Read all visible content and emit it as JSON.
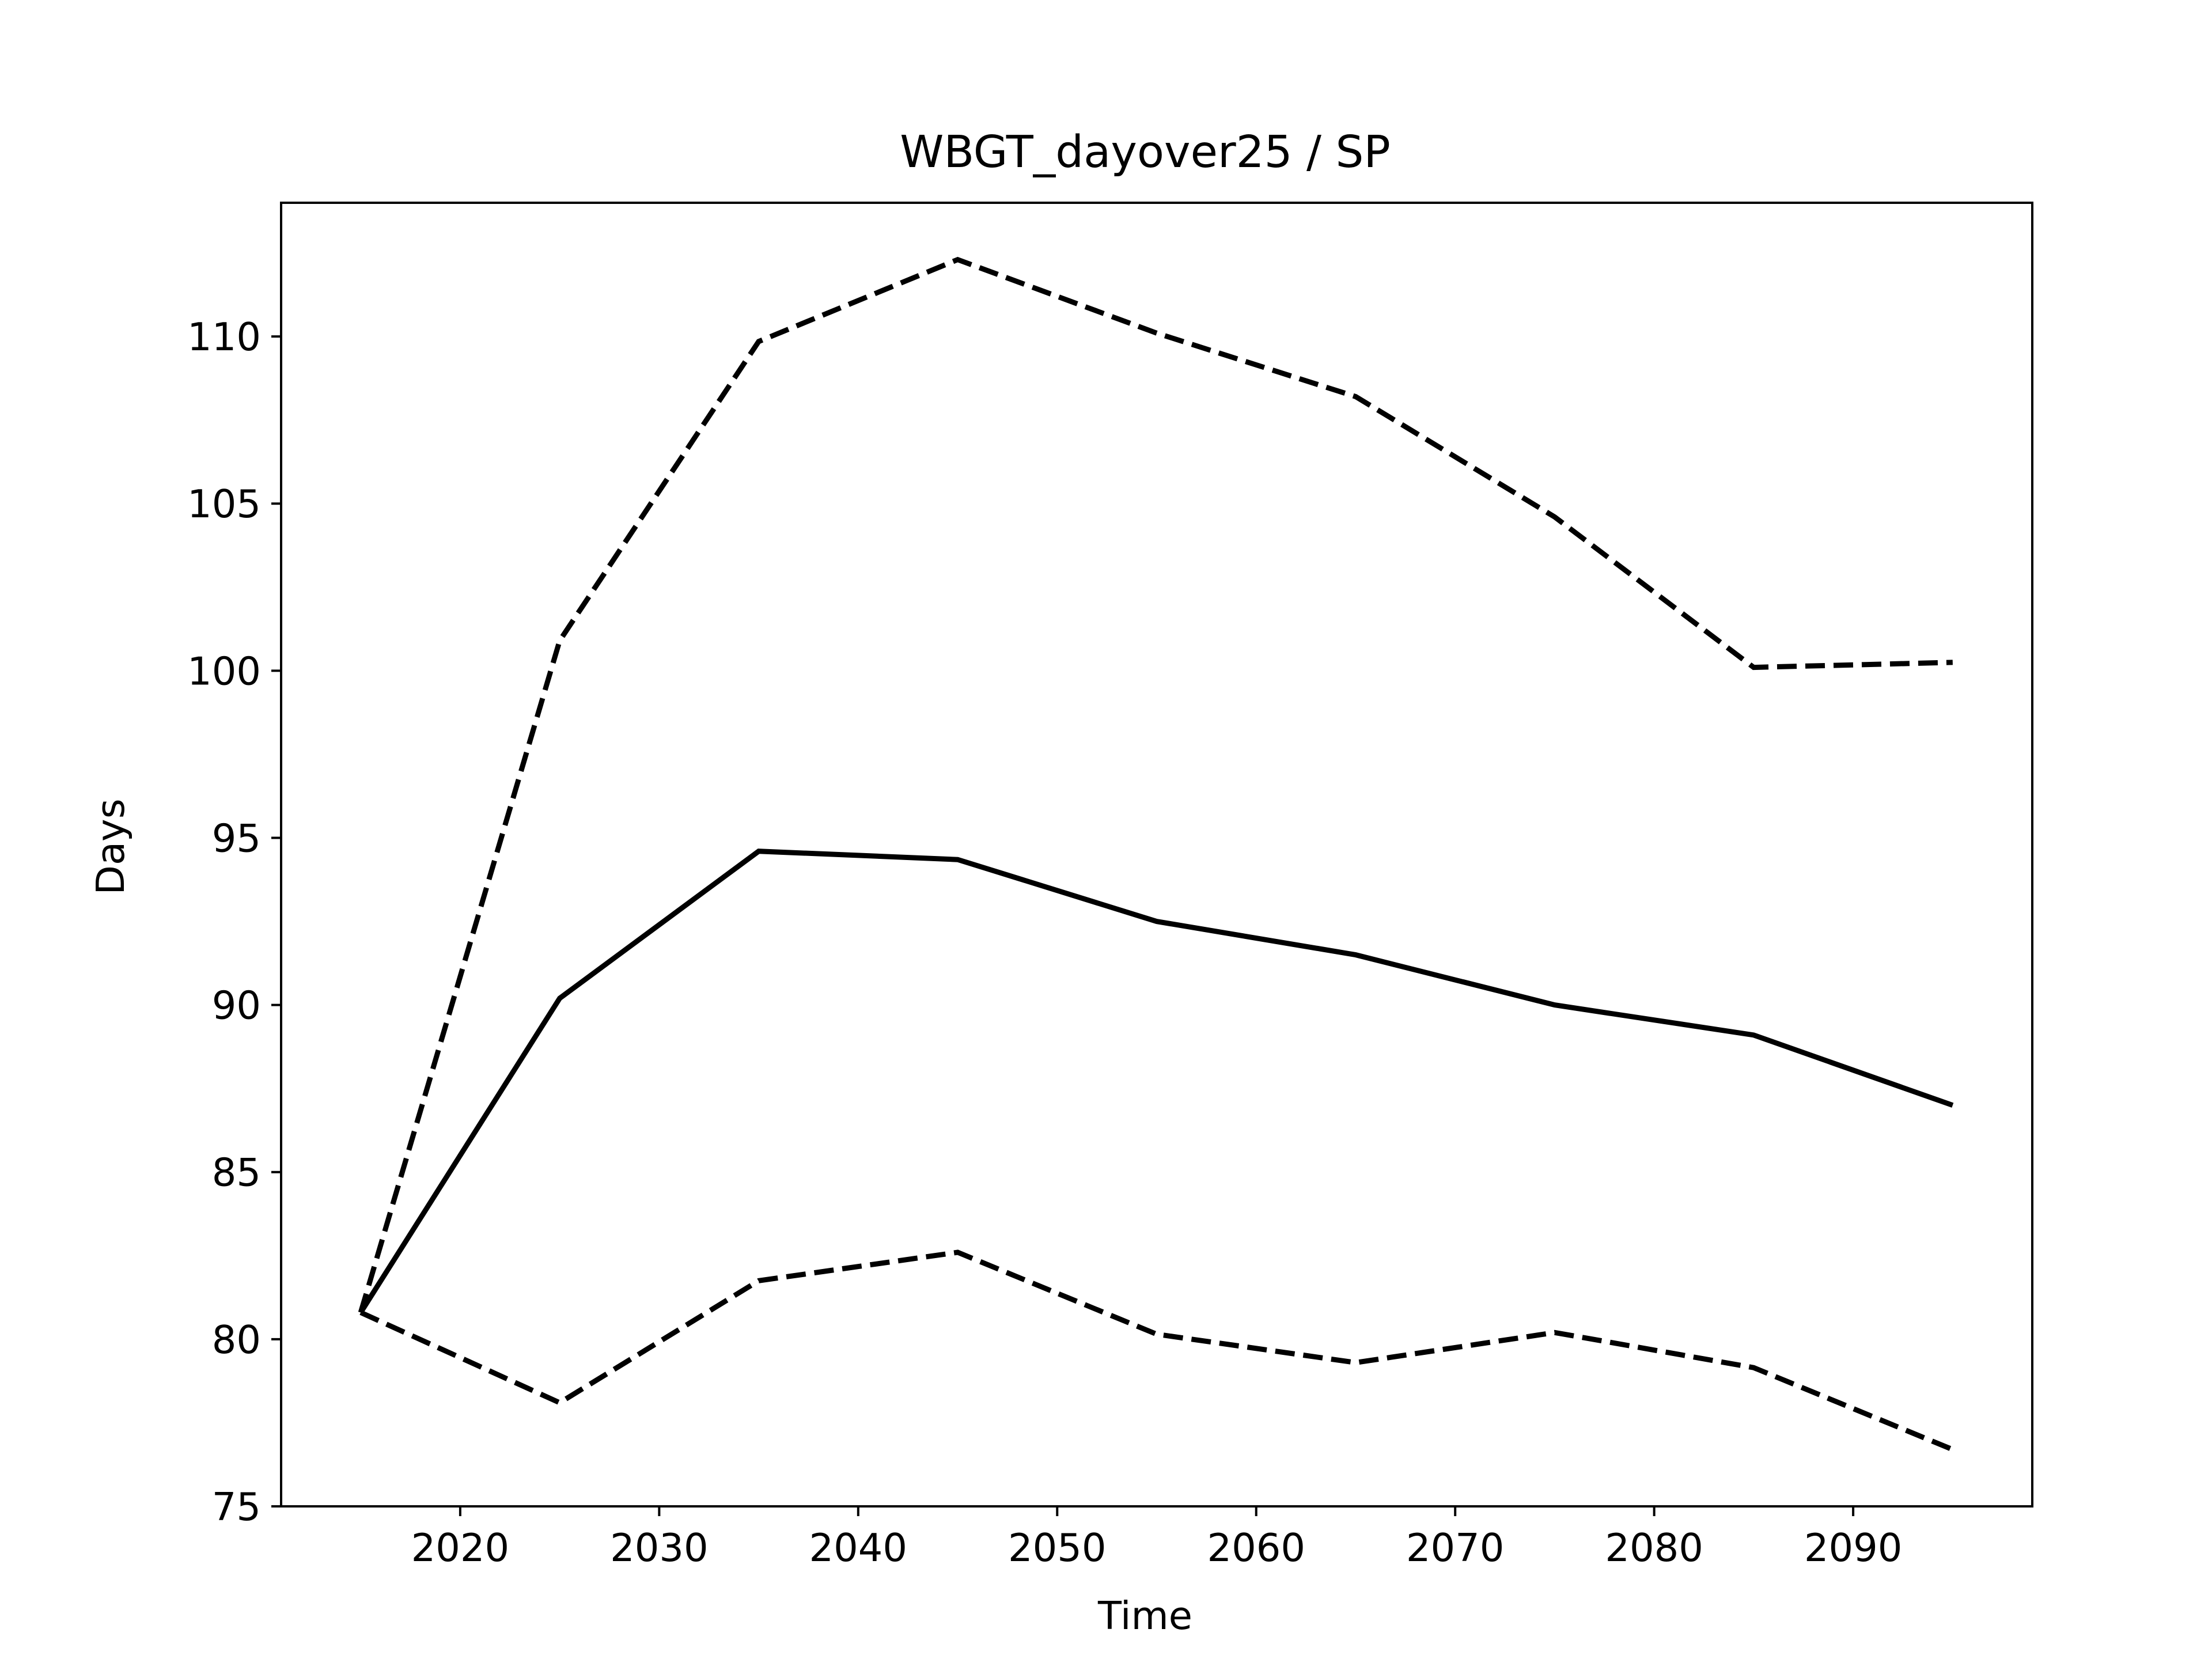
{
  "chart_data": {
    "type": "line",
    "title": "WBGT_dayover25 / SP",
    "xlabel": "Time",
    "ylabel": "Days",
    "x": [
      2015,
      2025,
      2035,
      2045,
      2055,
      2065,
      2075,
      2085,
      2095
    ],
    "xlim": [
      2011,
      2099
    ],
    "ylim": [
      75,
      114
    ],
    "xticks": [
      2020,
      2030,
      2040,
      2050,
      2060,
      2070,
      2080,
      2090
    ],
    "yticks": [
      75,
      80,
      85,
      90,
      95,
      100,
      105,
      110
    ],
    "grid": false,
    "legend": "none",
    "line_color": "#000000",
    "series": [
      {
        "style": "solid",
        "values": [
          80.8,
          90.2,
          94.6,
          94.35,
          92.5,
          91.5,
          90.0,
          89.1,
          87.0
        ]
      },
      {
        "style": "dashed",
        "values": [
          80.8,
          100.9,
          109.85,
          112.3,
          110.1,
          108.2,
          104.6,
          100.1,
          100.25
        ]
      },
      {
        "style": "dashed",
        "values": [
          80.8,
          78.1,
          81.75,
          82.6,
          80.15,
          79.3,
          80.2,
          79.15,
          76.7
        ]
      }
    ]
  }
}
